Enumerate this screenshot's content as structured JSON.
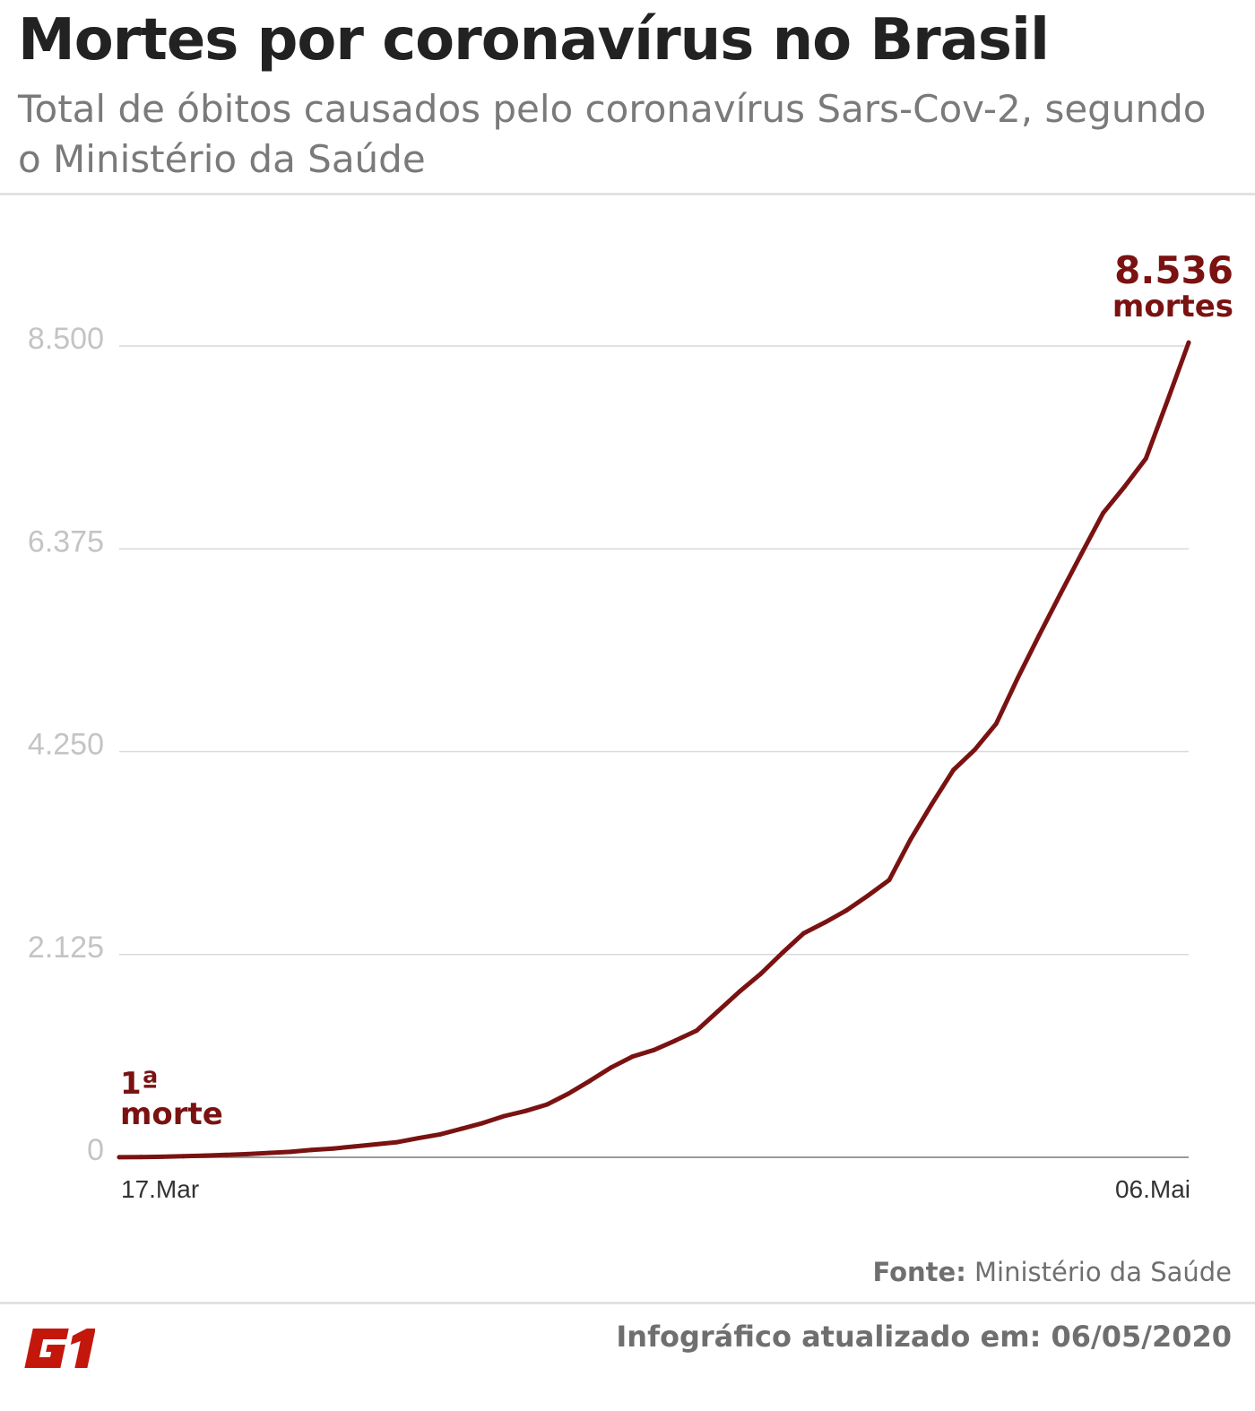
{
  "header": {
    "title": "Mortes por coronavírus no Brasil",
    "subtitle": "Total de óbitos causados pelo coronavírus Sars-Cov-2, segundo o Ministério da Saúde"
  },
  "chart_data": {
    "type": "line",
    "title": "Mortes por coronavírus no Brasil",
    "subtitle": "Total de óbitos causados pelo coronavírus Sars-Cov-2, segundo o Ministério da Saúde",
    "xlabel": "",
    "ylabel": "",
    "ylim": [
      0,
      8500
    ],
    "yticks": [
      0,
      2125,
      4250,
      6375,
      8500
    ],
    "ytick_labels": [
      "0",
      "2.125",
      "4.250",
      "6.375",
      "8.500"
    ],
    "xtick_labels": [
      "17.Mar",
      "06.Mai"
    ],
    "x_start": "17.Mar",
    "x_end": "06.Mai",
    "grid": true,
    "line_color": "#7a1212",
    "values": [
      1,
      3,
      6,
      11,
      18,
      25,
      34,
      46,
      57,
      77,
      92,
      114,
      136,
      159,
      201,
      240,
      299,
      359,
      432,
      486,
      553,
      667,
      800,
      941,
      1056,
      1124,
      1223,
      1328,
      1532,
      1736,
      1924,
      2141,
      2347,
      2462,
      2587,
      2741,
      2906,
      3331,
      3704,
      4057,
      4271,
      4543,
      5017,
      5466,
      5901,
      6329,
      6750,
      7025,
      7321,
      7921,
      8536
    ],
    "annotations": {
      "start_line1": "1ª",
      "start_line2": "morte",
      "end_value": "8.536",
      "end_label": "mortes"
    }
  },
  "footer": {
    "source_label": "Fonte:",
    "source_value": "Ministério da Saúde",
    "updated": "Infográfico atualizado em: 06/05/2020",
    "logo": "G1",
    "logo_color": "#c4170c"
  }
}
